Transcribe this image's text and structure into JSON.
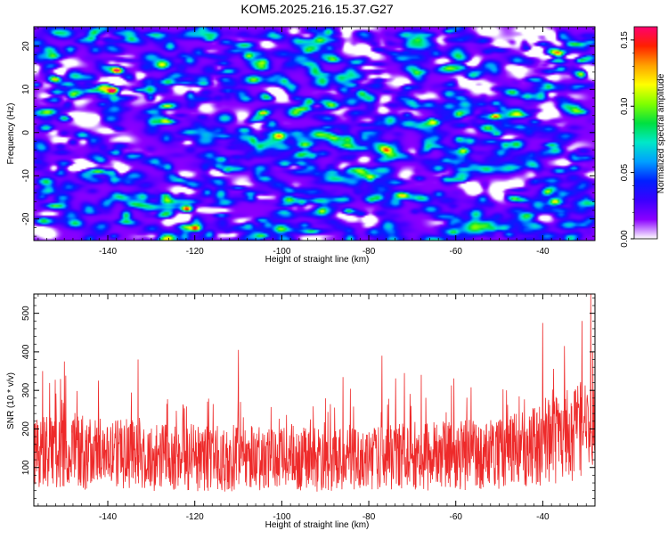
{
  "title": "KOM5.2025.216.15.37.G27",
  "chart_data": [
    {
      "type": "heatmap",
      "xlabel": "Height of straight line (km)",
      "ylabel": "Frequency (Hz)",
      "xlim": [
        -157,
        -28
      ],
      "ylim": [
        -25,
        24.5
      ],
      "x_ticks": [
        -140,
        -120,
        -100,
        -80,
        -60,
        -40
      ],
      "y_ticks": [
        -20,
        -10,
        0,
        10,
        20
      ],
      "colorbar": {
        "label": "Normalized spectral amplitude",
        "range": [
          0.0,
          0.16
        ],
        "ticks": [
          0.0,
          0.05,
          0.1,
          0.15
        ],
        "tick_labels": [
          "0.00",
          "0.05",
          "0.10",
          "0.15"
        ],
        "colormap": [
          "#ffffff",
          "#8a00ff",
          "#3a00ff",
          "#0020ff",
          "#00a0ff",
          "#00e8c8",
          "#00e040",
          "#80ff00",
          "#ffff00",
          "#ffa000",
          "#ff2000",
          "#ff0070"
        ]
      },
      "background_value": 0.025,
      "peaks": [
        {
          "x": -138,
          "y": 14.5,
          "value": 0.14
        },
        {
          "x": -139,
          "y": 10,
          "value": 0.15
        },
        {
          "x": -122,
          "y": -17.5,
          "value": 0.14
        },
        {
          "x": -120,
          "y": -22,
          "value": 0.13
        },
        {
          "x": -51,
          "y": 4,
          "value": 0.12
        },
        {
          "x": -152,
          "y": 12.5,
          "value": 0.09
        },
        {
          "x": -150,
          "y": 3.5,
          "value": 0.08
        },
        {
          "x": -65,
          "y": 2.5,
          "value": 0.08
        },
        {
          "x": -114,
          "y": -6,
          "value": 0.07
        },
        {
          "x": -96,
          "y": -5,
          "value": 0.06
        },
        {
          "x": -78,
          "y": -15,
          "value": 0.06
        },
        {
          "x": -85,
          "y": -18,
          "value": 0.09
        },
        {
          "x": -36,
          "y": 15,
          "value": 0.07
        },
        {
          "x": -31,
          "y": 5,
          "value": 0.07
        },
        {
          "x": -58,
          "y": -4,
          "value": 0.06
        },
        {
          "x": -33,
          "y": -8,
          "value": 0.06
        },
        {
          "x": -104,
          "y": 9,
          "value": 0.06
        }
      ]
    },
    {
      "type": "line",
      "xlabel": "Height of straight line (km)",
      "ylabel": "SNR (10 * v/v)",
      "xlim": [
        -157,
        -28
      ],
      "ylim": [
        0,
        550
      ],
      "x_ticks": [
        -140,
        -120,
        -100,
        -80,
        -60,
        -40
      ],
      "y_ticks": [
        100,
        200,
        300,
        400,
        500
      ],
      "color": "#ee2a2a",
      "series": [
        {
          "x_start": -157,
          "x_end": -28,
          "profile": [
            {
              "x": -157,
              "mean": 140,
              "max": 360
            },
            {
              "x": -140,
              "mean": 135,
              "max": 330
            },
            {
              "x": -120,
              "mean": 125,
              "max": 300
            },
            {
              "x": -100,
              "mean": 120,
              "max": 310
            },
            {
              "x": -80,
              "mean": 125,
              "max": 350
            },
            {
              "x": -60,
              "mean": 130,
              "max": 340
            },
            {
              "x": -45,
              "mean": 145,
              "max": 330
            },
            {
              "x": -38,
              "mean": 170,
              "max": 390
            },
            {
              "x": -33,
              "mean": 190,
              "max": 430
            },
            {
              "x": -28,
              "mean": 200,
              "max": 450
            }
          ],
          "notable_spikes": [
            {
              "x": -155,
              "value": 350
            },
            {
              "x": -150,
              "value": 375
            },
            {
              "x": -133,
              "value": 380
            },
            {
              "x": -110,
              "value": 405
            },
            {
              "x": -77,
              "value": 390
            },
            {
              "x": -40,
              "value": 475
            },
            {
              "x": -35,
              "value": 415
            },
            {
              "x": -31,
              "value": 480
            },
            {
              "x": -29,
              "value": 550
            },
            {
              "x": -28.5,
              "value": 400
            }
          ]
        }
      ]
    }
  ]
}
